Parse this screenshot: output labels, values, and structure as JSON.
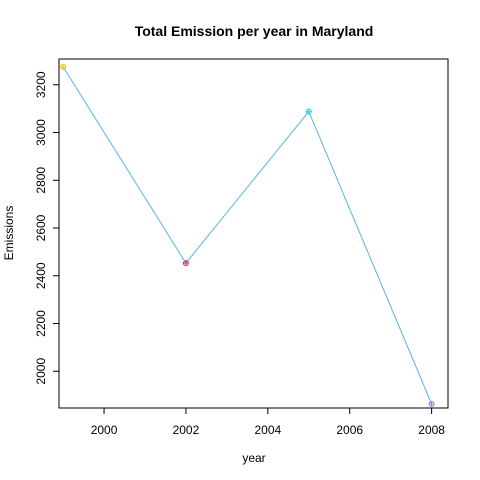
{
  "chart_data": {
    "type": "line",
    "title": "Total Emission per year in Maryland",
    "xlabel": "year",
    "ylabel": "Emissions",
    "x": [
      1999,
      2002,
      2005,
      2008
    ],
    "series": [
      {
        "values": [
          3275,
          2453,
          3088,
          1863
        ],
        "line_color": "#56B4E9",
        "point_colors": [
          "#E6C40E",
          "#D62D5A",
          "#27D9E0",
          "#8E86C2"
        ]
      }
    ],
    "xlim": [
      1998.9,
      2008.4
    ],
    "ylim": [
      1846,
      3308
    ],
    "xticks": [
      2000,
      2002,
      2004,
      2006,
      2008
    ],
    "yticks": [
      2000,
      2200,
      2400,
      2600,
      2800,
      3000,
      3200
    ],
    "grid": false,
    "legend": "none"
  }
}
